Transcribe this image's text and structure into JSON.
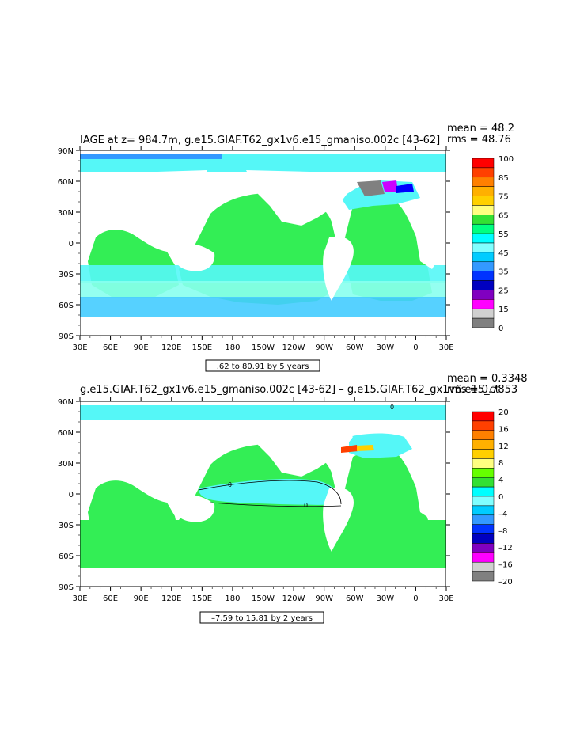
{
  "panels": [
    {
      "id": "top",
      "title": "IAGE at z= 984.7m, g.e15.GIAF.T62_gx1v6.e15_gmaniso.002c [43-62]",
      "mean": "mean = 48.2",
      "rms": "rms = 48.76",
      "range_note": ".62 to 80.91 by 5 years",
      "lat_labels": [
        "90N",
        "60N",
        "30N",
        "0",
        "30S",
        "60S",
        "90S"
      ],
      "lon_labels": [
        "30E",
        "60E",
        "90E",
        "120E",
        "150E",
        "180",
        "150W",
        "120W",
        "90W",
        "60W",
        "30W",
        "0",
        "30E"
      ],
      "colorbar": {
        "labels": [
          "100",
          "85",
          "75",
          "65",
          "55",
          "45",
          "35",
          "25",
          "15",
          "0"
        ],
        "colors": [
          "#ff0000",
          "#ff4000",
          "#ff8000",
          "#ffb000",
          "#ffd000",
          "#ffff80",
          "#33e033",
          "#00ff80",
          "#00ffff",
          "#80ffff",
          "#00ccff",
          "#3399ff",
          "#0033ff",
          "#0000c0",
          "#8000c0",
          "#ff00ff",
          "#d0d0d0",
          "#808080"
        ]
      },
      "colors": {
        "ocean_main": "#33ee55",
        "band_cyan": "#55f7f7",
        "band_light": "#88ffee",
        "band_sky": "#44ccff",
        "deep": "#3399ff",
        "gray": "#808080",
        "magenta": "#cc00ff",
        "blue": "#0000ff"
      }
    },
    {
      "id": "bottom",
      "title": "g.e15.GIAF.T62_gx1v6.e15_gmaniso.002c [43-62] – g.e15.GIAF.T62_gx1v6.e15_ct",
      "mean": "mean = 0.3348",
      "rms": "rms = 0.7853",
      "range_note": "–7.59 to 15.81 by 2 years",
      "lat_labels": [
        "90N",
        "60N",
        "30N",
        "0",
        "30S",
        "60S",
        "90S"
      ],
      "lon_labels": [
        "30E",
        "60E",
        "90E",
        "120E",
        "150E",
        "180",
        "150W",
        "120W",
        "90W",
        "60W",
        "30W",
        "0",
        "30E"
      ],
      "contour_labels": [
        "0",
        "0",
        "0"
      ],
      "colorbar": {
        "labels": [
          "20",
          "16",
          "12",
          "8",
          "4",
          "0",
          "–4",
          "–8",
          "–12",
          "–16",
          "–20"
        ],
        "colors": [
          "#ff0000",
          "#ff4000",
          "#ff8000",
          "#ffb000",
          "#ffd000",
          "#ffff80",
          "#66ff00",
          "#33e033",
          "#00ffff",
          "#80ffff",
          "#00ccff",
          "#3399ff",
          "#0033ff",
          "#0000c0",
          "#8000c0",
          "#ff00ff",
          "#d0d0d0",
          "#808080"
        ]
      },
      "colors": {
        "ocean_main": "#33ee55",
        "band_cyan": "#55f7f7",
        "band_light": "#88ffee",
        "band_sky": "#44ccff",
        "deep": "#3399ff",
        "gray": "#808080",
        "magenta": "#cc00ff",
        "blue": "#0000ff"
      }
    }
  ]
}
